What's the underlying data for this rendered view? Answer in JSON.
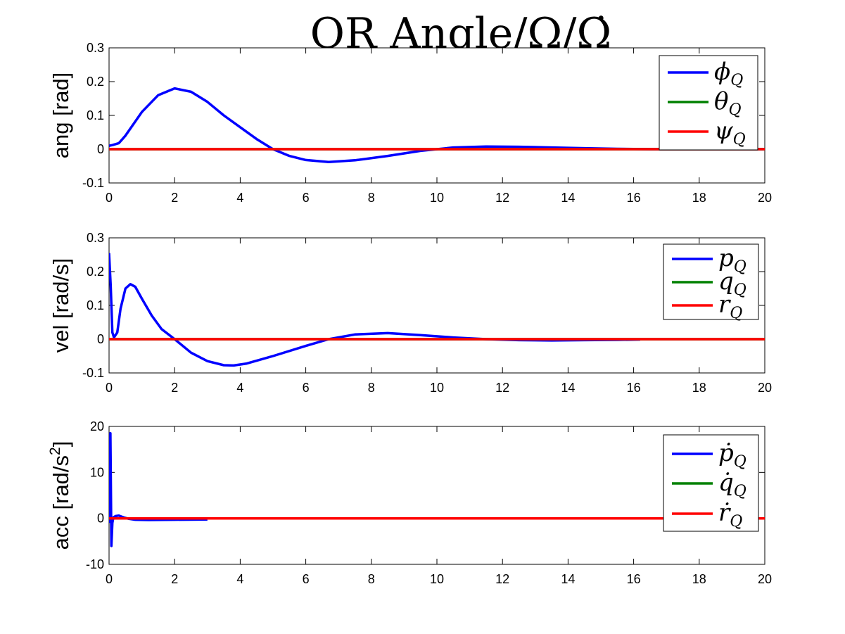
{
  "figure_title": "QR Angle/Ω/Ω̇",
  "chart_data": [
    {
      "type": "line",
      "ylabel": "ang [rad]",
      "xlim": [
        0,
        20
      ],
      "ylim": [
        -0.1,
        0.3
      ],
      "xticks": [
        "0",
        "2",
        "4",
        "6",
        "8",
        "10",
        "12",
        "14",
        "16",
        "18",
        "20"
      ],
      "yticks": [
        "-0.1",
        "0",
        "0.1",
        "0.2",
        "0.3"
      ],
      "legend_position": "top-right",
      "series": [
        {
          "name": "ϕ",
          "sub": "Q",
          "color": "#0000ff",
          "x": [
            0,
            0.1,
            0.3,
            0.5,
            1.0,
            1.5,
            2.0,
            2.5,
            3.0,
            3.5,
            4.0,
            4.5,
            5.0,
            5.5,
            6.0,
            6.7,
            7.5,
            8.5,
            9.5,
            10.5,
            11.5,
            12.5,
            13.5,
            14.5,
            15.5,
            16.5,
            17.5,
            18.5,
            19.5,
            20.0
          ],
          "y": [
            0.01,
            0.012,
            0.018,
            0.04,
            0.11,
            0.16,
            0.18,
            0.17,
            0.14,
            0.1,
            0.065,
            0.03,
            0.0,
            -0.02,
            -0.032,
            -0.038,
            -0.033,
            -0.02,
            -0.005,
            0.005,
            0.008,
            0.007,
            0.005,
            0.003,
            0.001,
            0.0,
            0.0,
            0.0,
            0.0,
            0.0
          ]
        },
        {
          "name": "θ",
          "sub": "Q",
          "color": "#008000",
          "x": [
            0,
            20
          ],
          "y": [
            0,
            0
          ]
        },
        {
          "name": "ψ",
          "sub": "Q",
          "color": "#ff0000",
          "x": [
            0,
            20
          ],
          "y": [
            0,
            0
          ]
        }
      ]
    },
    {
      "type": "line",
      "ylabel": "vel [rad/s]",
      "xlim": [
        0,
        20
      ],
      "ylim": [
        -0.1,
        0.3
      ],
      "xticks": [
        "0",
        "2",
        "4",
        "6",
        "8",
        "10",
        "12",
        "14",
        "16",
        "18",
        "20"
      ],
      "yticks": [
        "-0.1",
        "0",
        "0.1",
        "0.2",
        "0.3"
      ],
      "legend_position": "top-right",
      "series": [
        {
          "name": "p",
          "sub": "Q",
          "color": "#0000ff",
          "x": [
            0,
            0.05,
            0.1,
            0.15,
            0.25,
            0.35,
            0.5,
            0.65,
            0.8,
            1.0,
            1.3,
            1.6,
            2.0,
            2.5,
            3.0,
            3.5,
            3.8,
            4.2,
            5.0,
            6.0,
            6.7,
            7.5,
            8.5,
            9.5,
            10.5,
            11.5,
            12.5,
            13.5,
            14.5,
            15.5,
            16.2
          ],
          "y": [
            0.255,
            0.16,
            0.02,
            0.005,
            0.02,
            0.09,
            0.15,
            0.163,
            0.155,
            0.12,
            0.07,
            0.03,
            0.0,
            -0.04,
            -0.065,
            -0.077,
            -0.078,
            -0.072,
            -0.05,
            -0.02,
            0.0,
            0.014,
            0.018,
            0.012,
            0.005,
            0.0,
            -0.003,
            -0.004,
            -0.003,
            -0.002,
            -0.001
          ]
        },
        {
          "name": "q",
          "sub": "Q",
          "color": "#008000",
          "x": [
            0,
            20
          ],
          "y": [
            0,
            0
          ]
        },
        {
          "name": "r",
          "sub": "Q",
          "color": "#ff0000",
          "x": [
            0,
            20
          ],
          "y": [
            0,
            0
          ]
        }
      ]
    },
    {
      "type": "line",
      "ylabel": "acc [rad/s",
      "ylabel_sup": "2",
      "ylabel_end": "]",
      "xlim": [
        0,
        20
      ],
      "ylim": [
        -10,
        20
      ],
      "xticks": [
        "0",
        "2",
        "4",
        "6",
        "8",
        "10",
        "12",
        "14",
        "16",
        "18",
        "20"
      ],
      "yticks": [
        "-10",
        "0",
        "10",
        "20"
      ],
      "legend_position": "top-right",
      "series": [
        {
          "name": "ṗ",
          "sub": "Q",
          "color": "#0000ff",
          "x": [
            0,
            0.04,
            0.07,
            0.1,
            0.13,
            0.2,
            0.3,
            0.45,
            0.6,
            0.8,
            1.2,
            2.0,
            3.0
          ],
          "y": [
            -1,
            18.5,
            -6,
            -1,
            0.2,
            0.5,
            0.6,
            0.2,
            -0.1,
            -0.3,
            -0.35,
            -0.3,
            -0.25
          ]
        },
        {
          "name": "q̇",
          "sub": "Q",
          "color": "#008000",
          "x": [
            0,
            20
          ],
          "y": [
            0,
            0
          ]
        },
        {
          "name": "ṙ",
          "sub": "Q",
          "color": "#ff0000",
          "x": [
            0,
            20
          ],
          "y": [
            0,
            0
          ]
        }
      ]
    }
  ]
}
